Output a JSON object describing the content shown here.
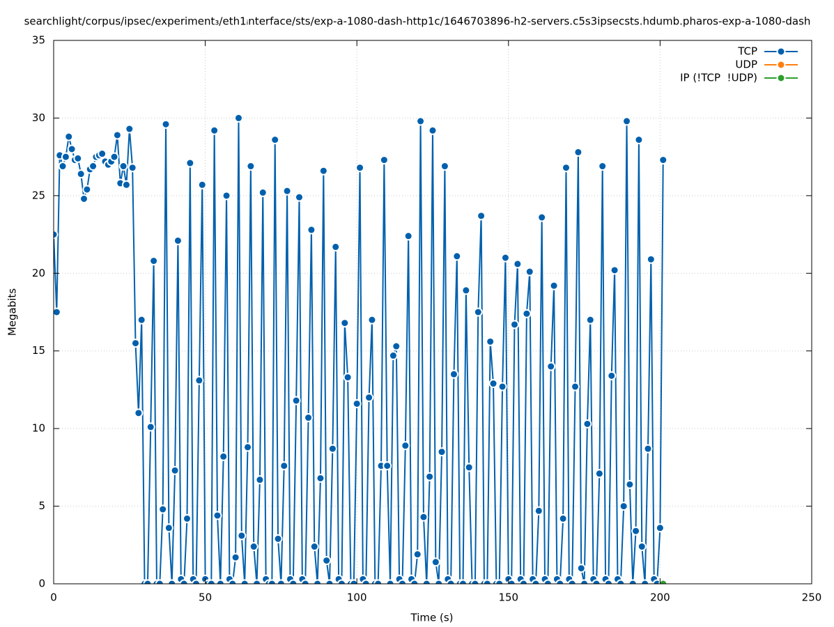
{
  "chart_data": {
    "type": "line",
    "title": "searchlight/corpus/ipsec/experiment₃/eth1ᵢnterface/sts/exp-a-1080-dash-http1c/1646703896-h2-servers.c5s3ipsecsts.hdumb.pharos-exp-a-1080-dash",
    "x_label": "Time (s)",
    "y_label": "Megabits",
    "xlim": [
      0,
      250
    ],
    "xticks": [
      0,
      50,
      100,
      150,
      200,
      250
    ],
    "ylim": [
      0,
      35
    ],
    "yticks": [
      0,
      5,
      10,
      15,
      20,
      25,
      30,
      35
    ],
    "grid": true,
    "legend": "top-right",
    "series": [
      {
        "name": "TCP",
        "color": "#0060ad",
        "x": [
          0,
          1,
          2,
          3,
          4,
          5,
          6,
          7,
          8,
          9,
          10,
          11,
          12,
          13,
          14,
          15,
          16,
          17,
          18,
          19,
          20,
          21,
          22,
          23,
          24,
          25,
          26,
          27,
          28,
          29,
          30,
          31,
          32,
          33,
          34,
          35,
          36,
          37,
          38,
          39,
          40,
          41,
          42,
          43,
          44,
          45,
          46,
          47,
          48,
          49,
          50,
          51,
          52,
          53,
          54,
          55,
          56,
          57,
          58,
          59,
          60,
          61,
          62,
          63,
          64,
          65,
          66,
          67,
          68,
          69,
          70,
          71,
          72,
          73,
          74,
          75,
          76,
          77,
          78,
          79,
          80,
          81,
          82,
          83,
          84,
          85,
          86,
          87,
          88,
          89,
          90,
          91,
          92,
          93,
          94,
          95,
          96,
          97,
          98,
          99,
          100,
          101,
          102,
          103,
          104,
          105,
          106,
          107,
          108,
          109,
          110,
          111,
          112,
          113,
          114,
          115,
          116,
          117,
          118,
          119,
          120,
          121,
          122,
          123,
          124,
          125,
          126,
          127,
          128,
          129,
          130,
          131,
          132,
          133,
          134,
          135,
          136,
          137,
          138,
          139,
          140,
          141,
          142,
          143,
          144,
          145,
          146,
          147,
          148,
          149,
          150,
          151,
          152,
          153,
          154,
          155,
          156,
          157,
          158,
          159,
          160,
          161,
          162,
          163,
          164,
          165,
          166,
          167,
          168,
          169,
          170,
          171,
          172,
          173,
          174,
          175,
          176,
          177,
          178,
          179,
          180,
          181,
          182,
          183,
          184,
          185,
          186,
          187,
          188,
          189,
          190,
          191,
          192,
          193,
          194,
          195,
          196,
          197,
          198,
          199,
          200,
          201
        ],
        "values": [
          22.5,
          17.5,
          27.6,
          26.9,
          27.5,
          28.8,
          28,
          27.3,
          27.4,
          26.4,
          24.8,
          25.4,
          26.7,
          26.9,
          27.5,
          27.6,
          27.7,
          27.2,
          27,
          27.2,
          27.5,
          28.9,
          25.8,
          26.9,
          25.7,
          29.3,
          26.8,
          15.5,
          11,
          17,
          0,
          0,
          10.1,
          20.8,
          0,
          0,
          4.8,
          29.6,
          3.6,
          0,
          7.3,
          22.1,
          0.3,
          0,
          4.2,
          27.1,
          0.3,
          0,
          13.1,
          25.7,
          0.3,
          0,
          0,
          29.2,
          4.4,
          0,
          8.2,
          25,
          0.3,
          0,
          1.7,
          30,
          3.1,
          0,
          8.8,
          26.9,
          2.4,
          0,
          6.7,
          25.2,
          0.3,
          0,
          0,
          28.6,
          2.9,
          0,
          7.6,
          25.3,
          0.3,
          0,
          11.8,
          24.9,
          0.3,
          0,
          10.7,
          22.8,
          2.4,
          0,
          6.8,
          26.6,
          1.5,
          0,
          8.7,
          21.7,
          0.3,
          0,
          16.8,
          13.3,
          0,
          0,
          11.6,
          26.8,
          0.3,
          0,
          12,
          17,
          0,
          0,
          7.6,
          27.3,
          7.6,
          0,
          14.7,
          15.3,
          0.3,
          0,
          8.9,
          22.4,
          0.3,
          0,
          1.9,
          29.8,
          4.3,
          0,
          6.9,
          29.2,
          1.4,
          0,
          8.5,
          26.9,
          0.3,
          0,
          13.5,
          21.1,
          0,
          0,
          18.9,
          7.5,
          0,
          0,
          17.5,
          23.7,
          0,
          0,
          15.6,
          12.9,
          0,
          0,
          12.7,
          21,
          0.3,
          0,
          16.7,
          20.6,
          0.3,
          0,
          17.4,
          20.1,
          0.3,
          0,
          4.7,
          23.6,
          0.3,
          0,
          14,
          19.2,
          0.3,
          0,
          4.2,
          26.8,
          0.3,
          0,
          12.7,
          27.8,
          1,
          0,
          10.3,
          17,
          0.3,
          0,
          7.1,
          26.9,
          0.3,
          0,
          13.4,
          20.2,
          0.3,
          0,
          5,
          29.8,
          6.4,
          0,
          3.4,
          28.6,
          2.4,
          0,
          8.7,
          20.9,
          0.3,
          0,
          3.6,
          27.3
        ]
      },
      {
        "name": "UDP",
        "color": "#ff7f0e",
        "x": [
          201
        ],
        "values": [
          0
        ]
      },
      {
        "name": "IP (!TCP  !UDP)",
        "color": "#2ca02c",
        "x": [
          201
        ],
        "values": [
          0
        ]
      }
    ]
  }
}
